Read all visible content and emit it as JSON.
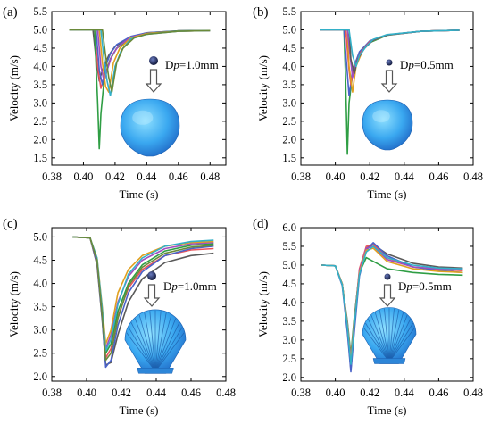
{
  "chart_data": [
    {
      "panel_label": "(a)",
      "type": "line",
      "xlabel": "Time (s)",
      "ylabel": "Velocity (m/s)",
      "xlim": [
        0.38,
        0.49
      ],
      "ylim": [
        1.3,
        5.5
      ],
      "xticks": [
        "0.38",
        "0.40",
        "0.42",
        "0.44",
        "0.46",
        "0.48"
      ],
      "yticks": [
        "1.5",
        "2.0",
        "2.5",
        "3.0",
        "3.5",
        "4.0",
        "4.5",
        "5.0",
        "5.5"
      ],
      "annotation": {
        "prefix": "D",
        "italic": "p",
        "suffix": "=1.0mm"
      },
      "particle_icon": "particle-dot-large",
      "body_icon": "smooth-shell-icon",
      "series": [
        {
          "color": "#5a5a5a",
          "x": [
            0.391,
            0.406,
            0.408,
            0.41,
            0.412,
            0.416,
            0.42,
            0.43,
            0.44,
            0.46,
            0.48
          ],
          "y": [
            5.0,
            5.0,
            4.2,
            3.6,
            3.9,
            4.3,
            4.55,
            4.8,
            4.92,
            4.97,
            4.98
          ]
        },
        {
          "color": "#e8545c",
          "x": [
            0.391,
            0.407,
            0.409,
            0.411,
            0.413,
            0.417,
            0.421,
            0.43,
            0.44,
            0.46,
            0.48
          ],
          "y": [
            5.0,
            5.0,
            4.0,
            3.4,
            3.7,
            4.2,
            4.5,
            4.78,
            4.9,
            4.97,
            4.98
          ]
        },
        {
          "color": "#4a63c8",
          "x": [
            0.391,
            0.408,
            0.41,
            0.412,
            0.414,
            0.417,
            0.421,
            0.43,
            0.44,
            0.46,
            0.48
          ],
          "y": [
            5.0,
            5.0,
            3.9,
            3.5,
            4.0,
            4.35,
            4.6,
            4.82,
            4.92,
            4.97,
            4.98
          ]
        },
        {
          "color": "#2f9e44",
          "x": [
            0.391,
            0.407,
            0.409,
            0.41,
            0.411,
            0.413,
            0.417,
            0.421,
            0.43,
            0.44,
            0.46,
            0.48
          ],
          "y": [
            5.0,
            5.0,
            3.0,
            1.75,
            2.7,
            3.6,
            4.2,
            4.5,
            4.78,
            4.9,
            4.97,
            4.98
          ]
        },
        {
          "color": "#a04fc0",
          "x": [
            0.391,
            0.409,
            0.411,
            0.413,
            0.415,
            0.418,
            0.422,
            0.43,
            0.44,
            0.46,
            0.48
          ],
          "y": [
            5.0,
            5.0,
            4.0,
            3.6,
            3.9,
            4.3,
            4.55,
            4.8,
            4.9,
            4.96,
            4.98
          ]
        },
        {
          "color": "#e0a020",
          "x": [
            0.391,
            0.41,
            0.412,
            0.414,
            0.416,
            0.419,
            0.423,
            0.43,
            0.44,
            0.46,
            0.48
          ],
          "y": [
            5.0,
            5.0,
            4.1,
            3.45,
            3.3,
            4.1,
            4.5,
            4.78,
            4.9,
            4.96,
            4.98
          ]
        },
        {
          "color": "#33b0c8",
          "x": [
            0.391,
            0.411,
            0.413,
            0.415,
            0.417,
            0.42,
            0.424,
            0.43,
            0.44,
            0.46,
            0.48
          ],
          "y": [
            5.0,
            5.0,
            4.2,
            3.6,
            3.2,
            4.0,
            4.45,
            4.75,
            4.88,
            4.96,
            4.98
          ]
        },
        {
          "color": "#6a8a3a",
          "x": [
            0.391,
            0.412,
            0.414,
            0.416,
            0.418,
            0.421,
            0.425,
            0.432,
            0.44,
            0.46,
            0.48
          ],
          "y": [
            5.0,
            5.0,
            4.3,
            3.7,
            3.3,
            4.1,
            4.5,
            4.78,
            4.88,
            4.96,
            4.98
          ]
        }
      ]
    },
    {
      "panel_label": "(b)",
      "type": "line",
      "xlabel": "Time (s)",
      "ylabel": "Velocity (m/s)",
      "xlim": [
        0.38,
        0.48
      ],
      "ylim": [
        1.3,
        5.5
      ],
      "xticks": [
        "0.38",
        "0.40",
        "0.42",
        "0.44",
        "0.46",
        "0.48"
      ],
      "yticks": [
        "1.5",
        "2.0",
        "2.5",
        "3.0",
        "3.5",
        "4.0",
        "4.5",
        "5.0",
        "5.5"
      ],
      "annotation": {
        "prefix": "D",
        "italic": "p",
        "suffix": "=0.5mm"
      },
      "particle_icon": "particle-dot-small",
      "body_icon": "smooth-shell-icon",
      "series": [
        {
          "color": "#2f9e44",
          "x": [
            0.391,
            0.405,
            0.406,
            0.407,
            0.408,
            0.41,
            0.414,
            0.42,
            0.43,
            0.45,
            0.472
          ],
          "y": [
            5.0,
            5.0,
            3.6,
            1.6,
            3.0,
            3.8,
            4.35,
            4.65,
            4.85,
            4.96,
            4.99
          ]
        },
        {
          "color": "#4a63c8",
          "x": [
            0.391,
            0.405,
            0.407,
            0.408,
            0.41,
            0.414,
            0.42,
            0.43,
            0.45,
            0.472
          ],
          "y": [
            5.0,
            5.0,
            3.8,
            3.2,
            3.9,
            4.4,
            4.7,
            4.86,
            4.96,
            4.99
          ]
        },
        {
          "color": "#e8545c",
          "x": [
            0.391,
            0.406,
            0.408,
            0.409,
            0.411,
            0.415,
            0.42,
            0.43,
            0.45,
            0.472
          ],
          "y": [
            5.0,
            5.0,
            3.9,
            3.5,
            4.0,
            4.4,
            4.68,
            4.86,
            4.96,
            4.99
          ]
        },
        {
          "color": "#e0a020",
          "x": [
            0.391,
            0.407,
            0.408,
            0.41,
            0.412,
            0.416,
            0.421,
            0.43,
            0.45,
            0.472
          ],
          "y": [
            5.0,
            5.0,
            4.0,
            3.3,
            4.0,
            4.45,
            4.7,
            4.86,
            4.96,
            4.99
          ]
        },
        {
          "color": "#a04fc0",
          "x": [
            0.391,
            0.407,
            0.409,
            0.41,
            0.412,
            0.416,
            0.421,
            0.43,
            0.45,
            0.472
          ],
          "y": [
            5.0,
            5.0,
            4.1,
            3.7,
            4.1,
            4.45,
            4.7,
            4.86,
            4.96,
            4.99
          ]
        },
        {
          "color": "#5a5a5a",
          "x": [
            0.391,
            0.408,
            0.409,
            0.411,
            0.413,
            0.417,
            0.422,
            0.43,
            0.45,
            0.472
          ],
          "y": [
            5.0,
            5.0,
            4.2,
            3.8,
            4.2,
            4.5,
            4.72,
            4.86,
            4.96,
            4.99
          ]
        },
        {
          "color": "#33b0c8",
          "x": [
            0.391,
            0.408,
            0.41,
            0.412,
            0.414,
            0.418,
            0.422,
            0.43,
            0.45,
            0.472
          ],
          "y": [
            5.0,
            5.0,
            4.3,
            4.0,
            4.3,
            4.55,
            4.74,
            4.87,
            4.96,
            4.99
          ]
        }
      ]
    },
    {
      "panel_label": "(c)",
      "type": "line",
      "xlabel": "Time (s)",
      "ylabel": "Velocity (m/s)",
      "xlim": [
        0.38,
        0.48
      ],
      "ylim": [
        1.9,
        5.2
      ],
      "xticks": [
        "0.38",
        "0.40",
        "0.42",
        "0.44",
        "0.46",
        "0.48"
      ],
      "yticks": [
        "2.0",
        "2.5",
        "3.0",
        "3.5",
        "4.0",
        "4.5",
        "5.0"
      ],
      "annotation": {
        "prefix": "D",
        "italic": "p",
        "suffix": "=1.0mm"
      },
      "particle_icon": "particle-dot-large",
      "body_icon": "ribbed-scallop-icon",
      "series": [
        {
          "color": "#5a5a5a",
          "x": [
            0.392,
            0.402,
            0.406,
            0.409,
            0.411,
            0.414,
            0.418,
            0.424,
            0.432,
            0.445,
            0.46,
            0.473
          ],
          "y": [
            5.0,
            4.98,
            4.4,
            3.2,
            2.25,
            2.3,
            2.9,
            3.6,
            4.1,
            4.45,
            4.6,
            4.65
          ]
        },
        {
          "color": "#e8545c",
          "x": [
            0.392,
            0.402,
            0.406,
            0.409,
            0.411,
            0.414,
            0.418,
            0.424,
            0.432,
            0.445,
            0.46,
            0.473
          ],
          "y": [
            5.0,
            4.98,
            4.45,
            3.3,
            2.4,
            2.6,
            3.3,
            3.9,
            4.3,
            4.6,
            4.72,
            4.75
          ]
        },
        {
          "color": "#4a63c8",
          "x": [
            0.392,
            0.402,
            0.406,
            0.409,
            0.411,
            0.414,
            0.418,
            0.424,
            0.432,
            0.445,
            0.46,
            0.473
          ],
          "y": [
            5.0,
            4.98,
            4.45,
            3.25,
            2.2,
            2.35,
            3.1,
            3.8,
            4.25,
            4.6,
            4.75,
            4.8
          ]
        },
        {
          "color": "#2f9e44",
          "x": [
            0.392,
            0.402,
            0.406,
            0.409,
            0.411,
            0.414,
            0.418,
            0.424,
            0.432,
            0.445,
            0.46,
            0.473
          ],
          "y": [
            5.0,
            4.98,
            4.5,
            3.4,
            2.5,
            2.7,
            3.4,
            4.0,
            4.4,
            4.7,
            4.82,
            4.85
          ]
        },
        {
          "color": "#a04fc0",
          "x": [
            0.392,
            0.402,
            0.406,
            0.409,
            0.411,
            0.414,
            0.418,
            0.424,
            0.432,
            0.445,
            0.46,
            0.473
          ],
          "y": [
            5.0,
            4.98,
            4.5,
            3.35,
            2.6,
            2.9,
            3.6,
            4.15,
            4.5,
            4.75,
            4.85,
            4.88
          ]
        },
        {
          "color": "#e0a020",
          "x": [
            0.392,
            0.402,
            0.406,
            0.409,
            0.411,
            0.414,
            0.418,
            0.424,
            0.432,
            0.445,
            0.46,
            0.473
          ],
          "y": [
            5.0,
            4.98,
            4.55,
            3.5,
            2.7,
            3.0,
            3.8,
            4.3,
            4.6,
            4.8,
            4.88,
            4.9
          ]
        },
        {
          "color": "#33b0c8",
          "x": [
            0.392,
            0.402,
            0.406,
            0.409,
            0.411,
            0.414,
            0.418,
            0.424,
            0.432,
            0.445,
            0.46,
            0.473
          ],
          "y": [
            5.0,
            4.98,
            4.55,
            3.45,
            2.55,
            2.8,
            3.55,
            4.2,
            4.55,
            4.8,
            4.9,
            4.93
          ]
        },
        {
          "color": "#6a8a3a",
          "x": [
            0.392,
            0.402,
            0.406,
            0.409,
            0.411,
            0.414,
            0.418,
            0.424,
            0.432,
            0.445,
            0.46,
            0.473
          ],
          "y": [
            5.0,
            4.98,
            4.5,
            3.3,
            2.35,
            2.5,
            3.25,
            3.95,
            4.35,
            4.65,
            4.78,
            4.82
          ]
        }
      ]
    },
    {
      "panel_label": "(d)",
      "type": "line",
      "xlabel": "Time (s)",
      "ylabel": "Velocity (m/s)",
      "xlim": [
        0.38,
        0.48
      ],
      "ylim": [
        1.9,
        6.0
      ],
      "xticks": [
        "0.38",
        "0.40",
        "0.42",
        "0.44",
        "0.46",
        "0.48"
      ],
      "yticks": [
        "2.0",
        "2.5",
        "3.0",
        "3.5",
        "4.0",
        "4.5",
        "5.0",
        "5.5",
        "6.0"
      ],
      "annotation": {
        "prefix": "D",
        "italic": "p",
        "suffix": "=0.5mm"
      },
      "particle_icon": "particle-dot-small",
      "body_icon": "ribbed-scallop-icon",
      "series": [
        {
          "color": "#5a5a5a",
          "x": [
            0.392,
            0.4,
            0.404,
            0.407,
            0.409,
            0.411,
            0.414,
            0.418,
            0.422,
            0.43,
            0.445,
            0.46,
            0.474
          ],
          "y": [
            5.0,
            4.98,
            4.5,
            3.3,
            2.2,
            3.3,
            4.8,
            5.45,
            5.55,
            5.3,
            5.05,
            4.95,
            4.92
          ]
        },
        {
          "color": "#e8545c",
          "x": [
            0.392,
            0.4,
            0.404,
            0.407,
            0.409,
            0.411,
            0.414,
            0.418,
            0.422,
            0.43,
            0.445,
            0.46,
            0.474
          ],
          "y": [
            5.0,
            4.98,
            4.5,
            3.4,
            2.4,
            3.5,
            4.9,
            5.5,
            5.55,
            5.2,
            4.95,
            4.88,
            4.85
          ]
        },
        {
          "color": "#4a63c8",
          "x": [
            0.392,
            0.4,
            0.404,
            0.407,
            0.409,
            0.411,
            0.414,
            0.418,
            0.422,
            0.43,
            0.445,
            0.46,
            0.474
          ],
          "y": [
            5.0,
            4.98,
            4.45,
            3.2,
            2.15,
            3.2,
            4.7,
            5.4,
            5.6,
            5.25,
            4.95,
            4.85,
            4.8
          ]
        },
        {
          "color": "#2f9e44",
          "x": [
            0.392,
            0.4,
            0.404,
            0.407,
            0.409,
            0.411,
            0.414,
            0.418,
            0.422,
            0.43,
            0.445,
            0.46,
            0.474
          ],
          "y": [
            5.0,
            4.98,
            4.5,
            3.5,
            2.6,
            3.6,
            4.8,
            5.2,
            5.1,
            4.9,
            4.8,
            4.75,
            4.73
          ]
        },
        {
          "color": "#a04fc0",
          "x": [
            0.392,
            0.4,
            0.404,
            0.407,
            0.409,
            0.411,
            0.414,
            0.418,
            0.422,
            0.43,
            0.445,
            0.46,
            0.474
          ],
          "y": [
            5.0,
            4.98,
            4.5,
            3.45,
            2.5,
            3.5,
            4.85,
            5.45,
            5.5,
            5.15,
            4.95,
            4.9,
            4.88
          ]
        },
        {
          "color": "#e0a020",
          "x": [
            0.392,
            0.4,
            0.404,
            0.407,
            0.409,
            0.411,
            0.414,
            0.418,
            0.422,
            0.43,
            0.445,
            0.46,
            0.474
          ],
          "y": [
            5.0,
            4.98,
            4.5,
            3.4,
            2.45,
            3.45,
            4.8,
            5.4,
            5.45,
            5.1,
            4.9,
            4.83,
            4.8
          ]
        },
        {
          "color": "#33b0c8",
          "x": [
            0.392,
            0.4,
            0.404,
            0.407,
            0.409,
            0.411,
            0.414,
            0.418,
            0.422,
            0.43,
            0.445,
            0.46,
            0.474
          ],
          "y": [
            5.0,
            4.98,
            4.48,
            3.35,
            2.35,
            3.4,
            4.75,
            5.35,
            5.5,
            5.2,
            5.0,
            4.92,
            4.9
          ]
        }
      ]
    }
  ]
}
